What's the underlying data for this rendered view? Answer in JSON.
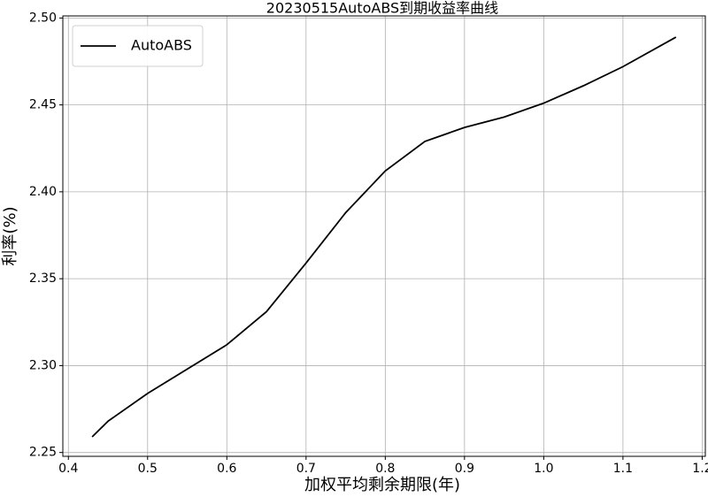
{
  "chart_data": {
    "type": "line",
    "title": "20230515AutoABS到期收益率曲线",
    "x_label": "加权平均剩余期限(年)",
    "y_label": "利率(%)",
    "x": [
      0.43,
      0.45,
      0.5,
      0.6,
      0.65,
      0.7,
      0.75,
      0.8,
      0.85,
      0.9,
      0.95,
      1.0,
      1.05,
      1.1,
      1.167
    ],
    "series": [
      {
        "name": "AutoABS",
        "color": "#000000",
        "values": [
          2.259,
          2.268,
          2.284,
          2.312,
          2.331,
          2.359,
          2.388,
          2.412,
          2.429,
          2.437,
          2.443,
          2.451,
          2.461,
          2.472,
          2.489
        ]
      }
    ],
    "xlim": [
      0.393,
      1.204
    ],
    "ylim": [
      2.2478,
      2.5012
    ],
    "xticks": [
      0.4,
      0.5,
      0.6,
      0.7,
      0.8,
      0.9,
      {
        "value": 1,
        "label": "1.0"
      },
      1.1,
      1.2
    ],
    "yticks": [
      2.25,
      {
        "value": 2.3,
        "label": "2.30"
      },
      2.35,
      {
        "value": 2.4,
        "label": "2.40"
      },
      2.45,
      {
        "value": 2.5,
        "label": "2.50"
      }
    ],
    "grid": true,
    "legend": "upper left"
  }
}
